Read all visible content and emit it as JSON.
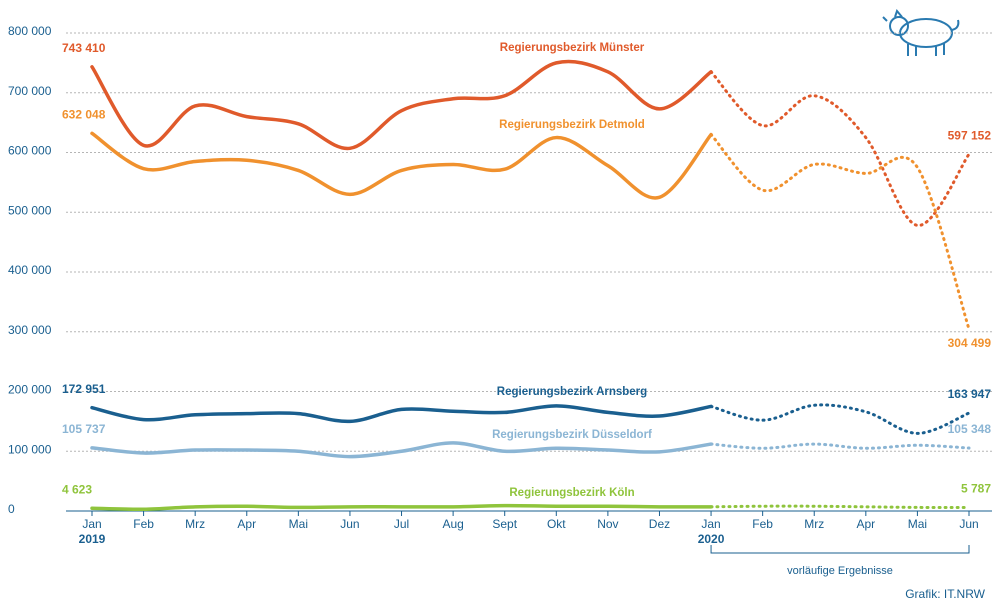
{
  "chart_data": {
    "type": "line",
    "categories": [
      "Jan",
      "Feb",
      "Mrz",
      "Apr",
      "Mai",
      "Jun",
      "Jul",
      "Aug",
      "Sept",
      "Okt",
      "Nov",
      "Dez",
      "Jan",
      "Feb",
      "Mrz",
      "Apr",
      "Mai",
      "Jun"
    ],
    "years": [
      "2019",
      "2020"
    ],
    "ylim": [
      0,
      800000
    ],
    "yticks": [
      0,
      {
        "value": 100000,
        "label": "100 000"
      },
      {
        "value": 200000,
        "label": "200 000"
      },
      {
        "value": 300000,
        "label": "300 000"
      },
      {
        "value": 400000,
        "label": "400 000"
      },
      {
        "value": 500000,
        "label": "500 000"
      },
      {
        "value": 600000,
        "label": "600 000"
      },
      {
        "value": 700000,
        "label": "700 000"
      },
      {
        "value": 800000,
        "label": "800 000"
      }
    ],
    "grid": true,
    "provisional_note": "vorläufige Ergebnisse",
    "credit": "Grafik: IT.NRW",
    "series": [
      {
        "name": "Regierungsbezirk Münster",
        "color": "#e05a2b",
        "values": [
          743410,
          612000,
          678000,
          660000,
          648000,
          607000,
          670000,
          690000,
          695000,
          750000,
          735000,
          673000,
          735000,
          645000,
          695000,
          625000,
          478000,
          597152
        ],
        "value_labels": [
          "743 410",
          null,
          null,
          null,
          null,
          null,
          null,
          null,
          null,
          null,
          null,
          null,
          null,
          null,
          null,
          null,
          null,
          "597 152"
        ]
      },
      {
        "name": "Regierungsbezirk Detmold",
        "color": "#f0912e",
        "values": [
          632048,
          573000,
          585000,
          587000,
          570000,
          530000,
          570000,
          580000,
          572000,
          625000,
          578000,
          525000,
          630000,
          537000,
          580000,
          565000,
          575000,
          304499
        ],
        "value_labels": [
          "632 048",
          null,
          null,
          null,
          null,
          null,
          null,
          null,
          null,
          null,
          null,
          null,
          null,
          null,
          null,
          null,
          null,
          "304 499"
        ]
      },
      {
        "name": "Regierungsbezirk Arnsberg",
        "color": "#1a5f8f",
        "values": [
          172951,
          153000,
          161000,
          163000,
          163000,
          150000,
          170000,
          167000,
          165000,
          176000,
          165000,
          159000,
          175000,
          152000,
          177000,
          166000,
          130000,
          163947
        ],
        "value_labels": [
          "172 951",
          null,
          null,
          null,
          null,
          null,
          null,
          null,
          null,
          null,
          null,
          null,
          null,
          null,
          null,
          null,
          null,
          "163 947"
        ]
      },
      {
        "name": "Regierungsbezirk Düsseldorf",
        "color": "#8bb5d4",
        "values": [
          105737,
          97000,
          102000,
          102000,
          100000,
          91000,
          100000,
          114000,
          100000,
          105000,
          102000,
          99000,
          112000,
          105000,
          112000,
          105000,
          110000,
          105348
        ],
        "value_labels": [
          "105 737",
          null,
          null,
          null,
          null,
          null,
          null,
          null,
          null,
          null,
          null,
          null,
          null,
          null,
          null,
          null,
          null,
          "105 348"
        ]
      },
      {
        "name": "Regierungsbezirk Köln",
        "color": "#8fc43c",
        "values": [
          4623,
          3000,
          7000,
          8000,
          6000,
          7000,
          7000,
          7000,
          9000,
          8000,
          8000,
          7000,
          7000,
          8000,
          8000,
          7000,
          6000,
          5787
        ],
        "value_labels": [
          "4 623",
          null,
          null,
          null,
          null,
          null,
          null,
          null,
          null,
          null,
          null,
          null,
          null,
          null,
          null,
          null,
          null,
          "5 787"
        ]
      }
    ]
  }
}
